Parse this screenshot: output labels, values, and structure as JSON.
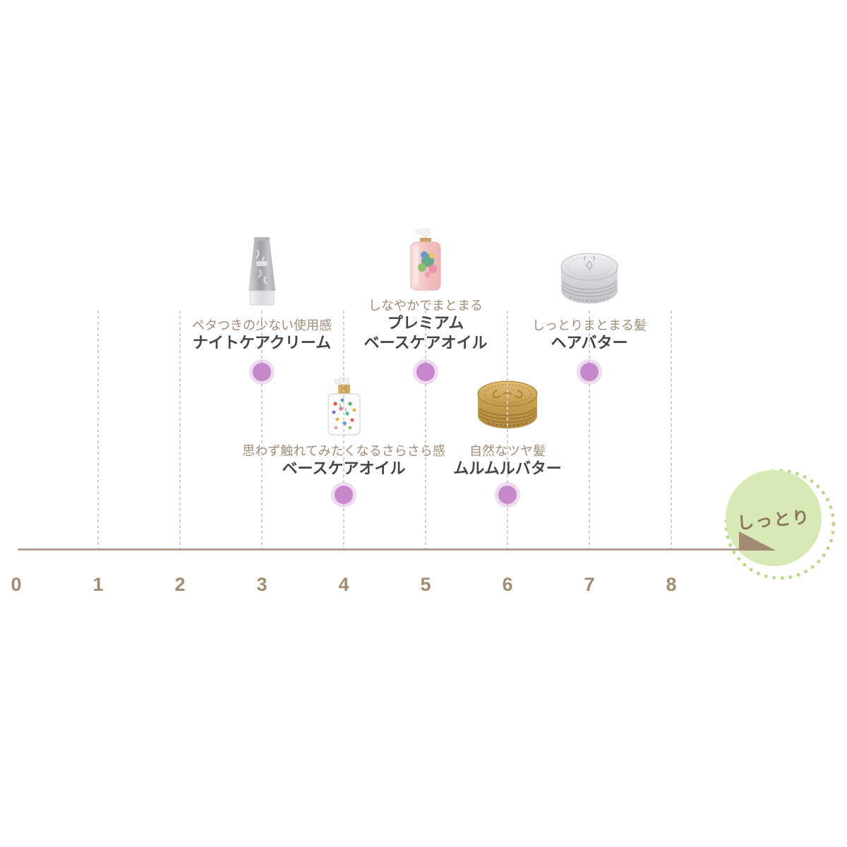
{
  "chart_data": {
    "type": "scatter",
    "title": "",
    "xlabel": "",
    "xlim": [
      0,
      8
    ],
    "x_ticks": [
      "0",
      "1",
      "2",
      "3",
      "4",
      "5",
      "6",
      "7",
      "8"
    ],
    "grid": "vertical-dashed",
    "legend": "none",
    "axis_end_label": "しっとり",
    "points": [
      {
        "name": "ナイトケアクリーム",
        "name_lines": [
          "ナイトケアクリーム"
        ],
        "tagline": "ペタつきの少ない使用感",
        "x": 3,
        "row": "upper",
        "icon": "cream-tube-silver"
      },
      {
        "name": "プレミアム ベースケアオイル",
        "name_lines": [
          "プレミアム",
          "ベースケアオイル"
        ],
        "tagline": "しなやかでまとまる",
        "x": 5,
        "row": "upper",
        "icon": "pump-bottle-pink"
      },
      {
        "name": "ヘアバター",
        "name_lines": [
          "ヘアバター"
        ],
        "tagline": "しっとりまとまる髪",
        "x": 7,
        "row": "upper",
        "icon": "tin-silver"
      },
      {
        "name": "ベースケアオイル",
        "name_lines": [
          "ベースケアオイル"
        ],
        "tagline": "思わず触れてみたくなるさらさら感",
        "x": 4,
        "row": "lower",
        "icon": "pump-bottle-clear"
      },
      {
        "name": "ムルムルバター",
        "name_lines": [
          "ムルムルバター"
        ],
        "tagline": "自然なツヤ髪",
        "x": 6,
        "row": "lower",
        "icon": "tin-gold"
      }
    ],
    "colors": {
      "axis_line": "#b2a190",
      "arrow": "#a38b73",
      "tick_label": "#a28d73",
      "gridline": "#d3cfc9",
      "tagline_text": "#a18c77",
      "name_text": "#474442",
      "dot_inner": "#c687cb",
      "dot_outer_alpha": "rgba(198,135,203,0.30)",
      "bubble_fill": "#d7e9b4",
      "bubble_ring_dots": "#b9d98d",
      "bubble_text": "#8b7461"
    }
  }
}
